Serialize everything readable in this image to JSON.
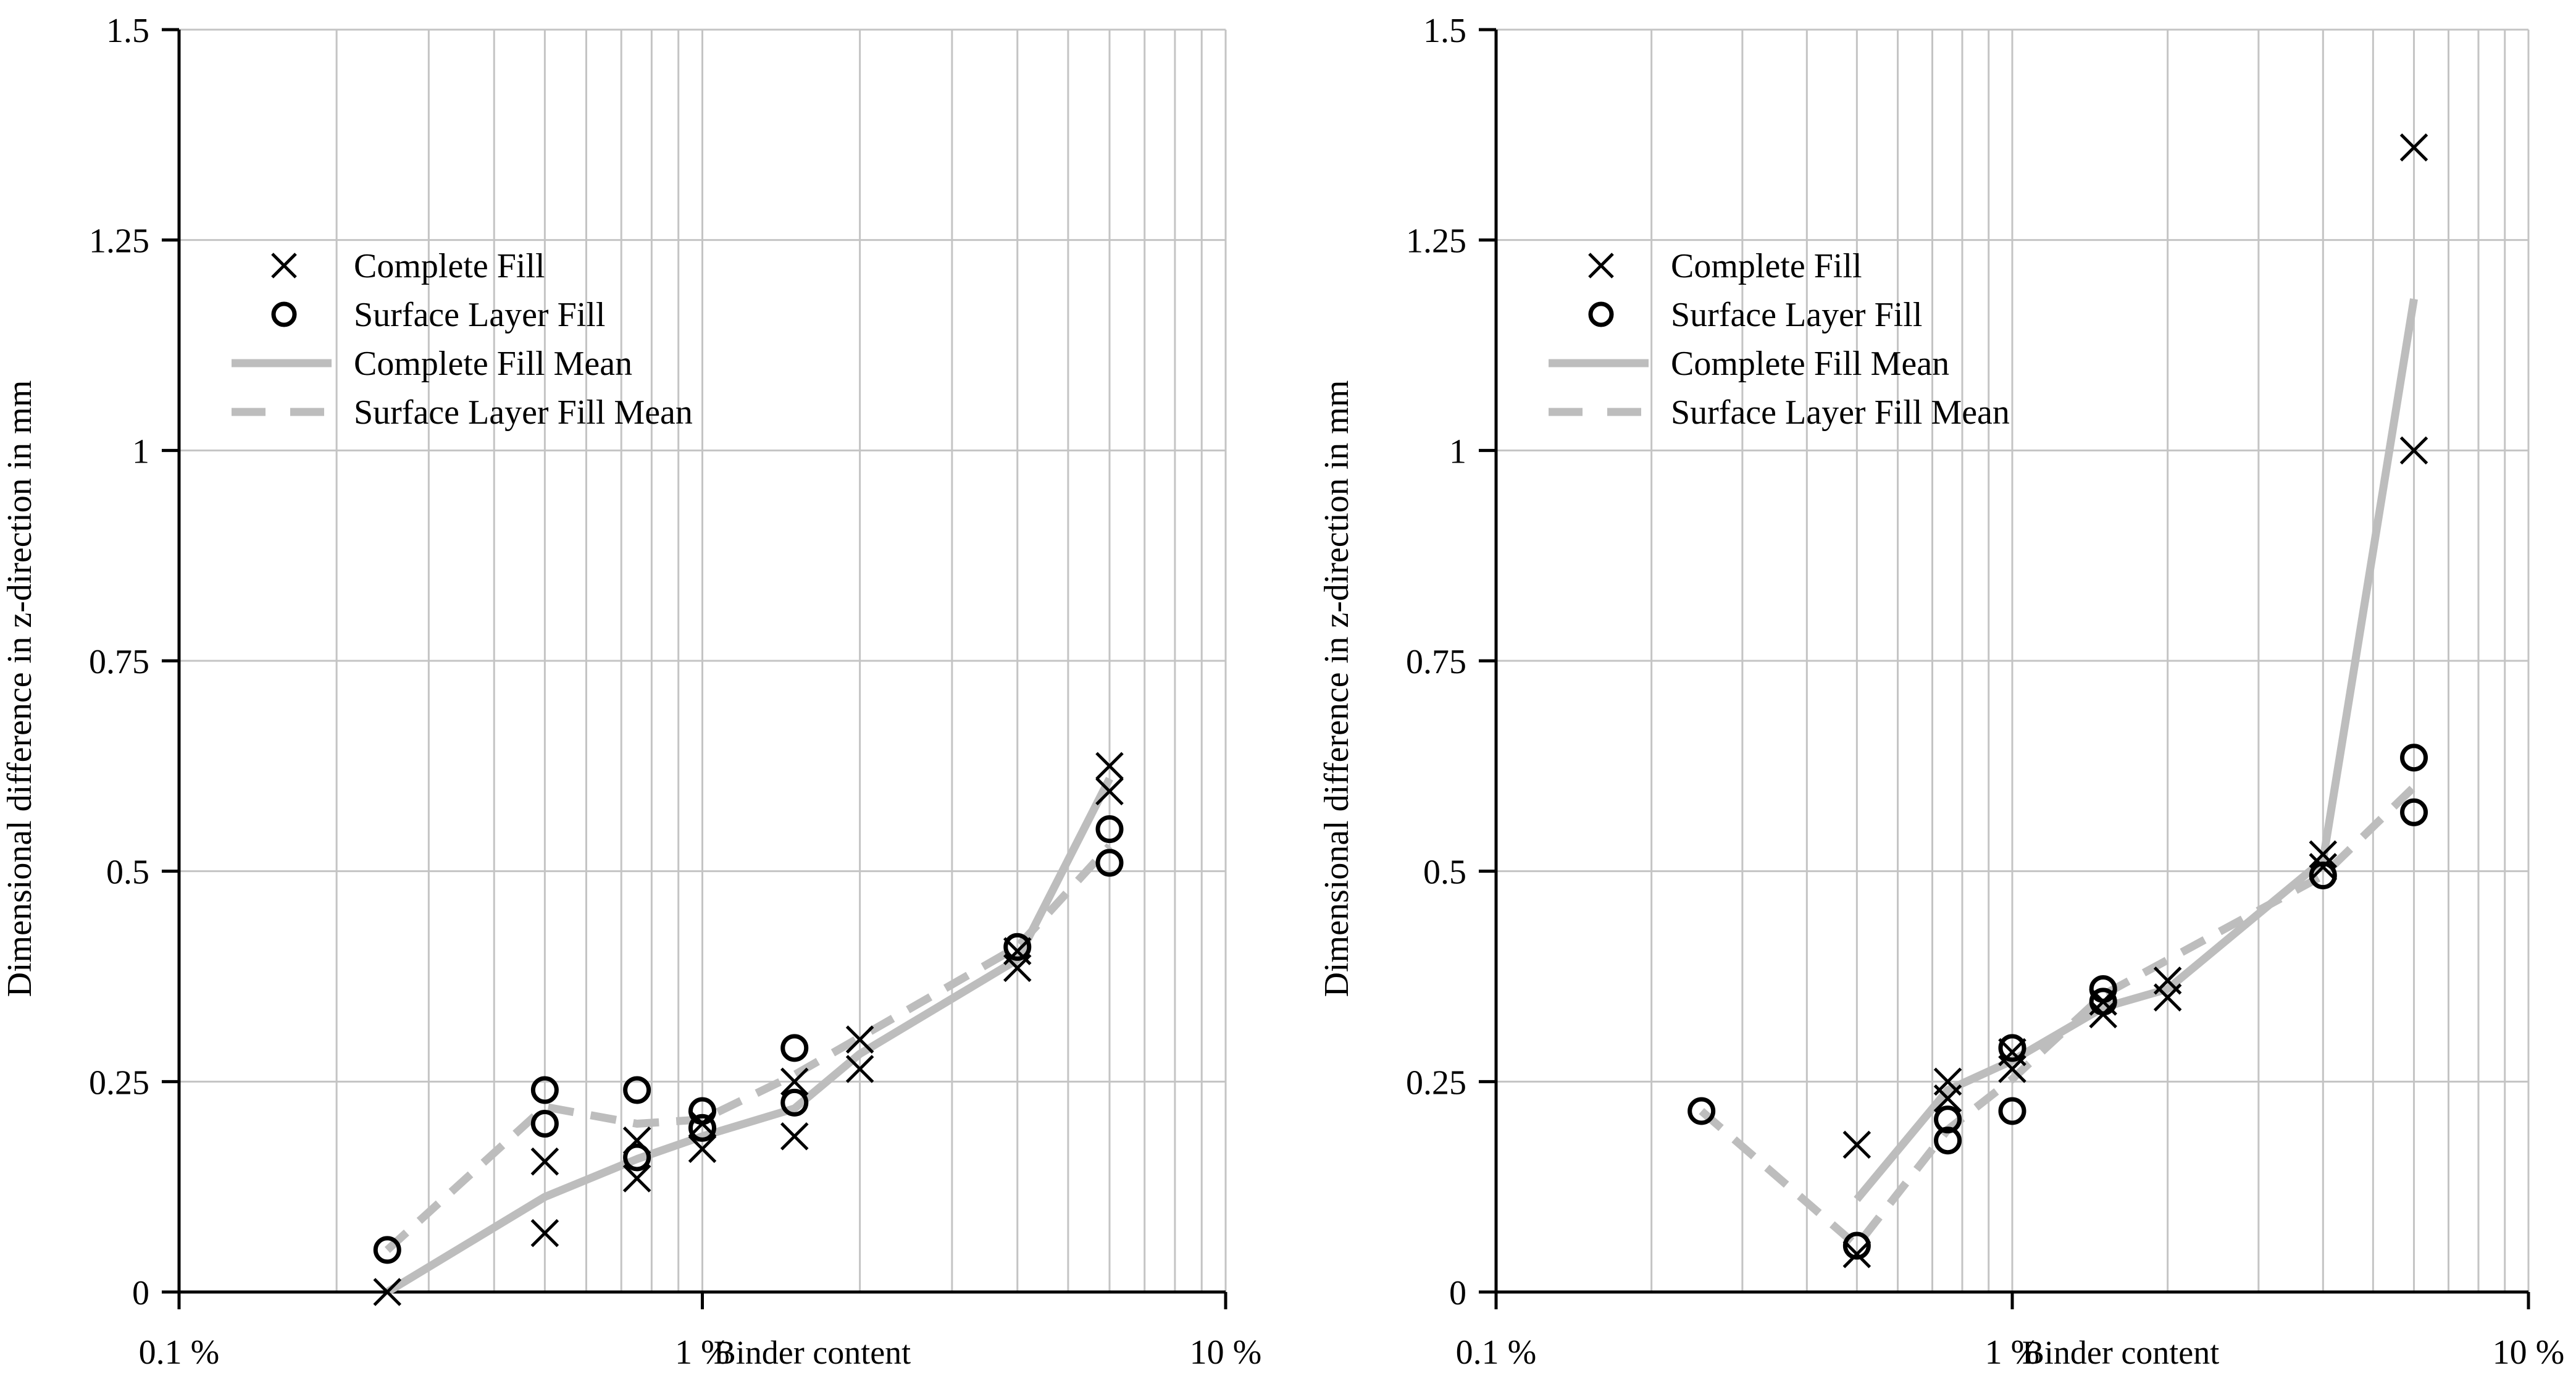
{
  "chart_data": [
    {
      "type": "scatter",
      "scale_x": "log",
      "xlim": [
        0.1,
        10
      ],
      "ylim": [
        0,
        1.5
      ],
      "x_ticks": [
        "0.1 %",
        "1 %",
        "10 %"
      ],
      "y_ticks": [
        "0",
        "0.25",
        "0.5",
        "0.75",
        "1",
        "1.25",
        "1.5"
      ],
      "xlabel": "Binder content",
      "ylabel": "Dimensional difference in z-direction in mm",
      "legend_position": "upper-left",
      "series": [
        {
          "name": "Complete Fill",
          "marker": "x",
          "points": [
            [
              0.25,
              0.0
            ],
            [
              0.5,
              0.07
            ],
            [
              0.5,
              0.155
            ],
            [
              0.75,
              0.135
            ],
            [
              0.75,
              0.18
            ],
            [
              1.0,
              0.17
            ],
            [
              1.0,
              0.2
            ],
            [
              1.5,
              0.185
            ],
            [
              1.5,
              0.25
            ],
            [
              2.0,
              0.265
            ],
            [
              2.0,
              0.3
            ],
            [
              4.0,
              0.385
            ],
            [
              4.0,
              0.405
            ],
            [
              6.0,
              0.595
            ],
            [
              6.0,
              0.625
            ]
          ]
        },
        {
          "name": "Surface Layer Fill",
          "marker": "o",
          "points": [
            [
              0.25,
              0.05
            ],
            [
              0.5,
              0.2
            ],
            [
              0.5,
              0.24
            ],
            [
              0.75,
              0.16
            ],
            [
              0.75,
              0.24
            ],
            [
              1.0,
              0.195
            ],
            [
              1.0,
              0.215
            ],
            [
              1.5,
              0.225
            ],
            [
              1.5,
              0.29
            ],
            [
              4.0,
              0.41
            ],
            [
              6.0,
              0.51
            ],
            [
              6.0,
              0.55
            ]
          ]
        },
        {
          "name": "Complete Fill Mean",
          "line": "solid",
          "color": "#bdbdbd",
          "points": [
            [
              0.25,
              0.0
            ],
            [
              0.5,
              0.113
            ],
            [
              0.75,
              0.158
            ],
            [
              1.0,
              0.185
            ],
            [
              1.5,
              0.218
            ],
            [
              2.0,
              0.283
            ],
            [
              4.0,
              0.395
            ],
            [
              6.0,
              0.61
            ]
          ]
        },
        {
          "name": "Surface Layer Fill Mean",
          "line": "dashed",
          "color": "#bdbdbd",
          "points": [
            [
              0.25,
              0.05
            ],
            [
              0.5,
              0.22
            ],
            [
              0.75,
              0.2
            ],
            [
              1.0,
              0.205
            ],
            [
              1.5,
              0.258
            ],
            [
              4.0,
              0.41
            ],
            [
              6.0,
              0.53
            ]
          ]
        }
      ]
    },
    {
      "type": "scatter",
      "scale_x": "log",
      "xlim": [
        0.1,
        10
      ],
      "ylim": [
        0,
        1.5
      ],
      "x_ticks": [
        "0.1 %",
        "1 %",
        "10 %"
      ],
      "y_ticks": [
        "0",
        "0.25",
        "0.5",
        "0.75",
        "1",
        "1.25",
        "1.5"
      ],
      "xlabel": "Binder content",
      "ylabel": "Dimensional difference in z-direction in mm",
      "legend_position": "upper-left",
      "series": [
        {
          "name": "Complete Fill",
          "marker": "x",
          "points": [
            [
              0.5,
              0.045
            ],
            [
              0.5,
              0.175
            ],
            [
              0.75,
              0.23
            ],
            [
              0.75,
              0.25
            ],
            [
              1.0,
              0.265
            ],
            [
              1.0,
              0.285
            ],
            [
              1.5,
              0.33
            ],
            [
              1.5,
              0.345
            ],
            [
              2.0,
              0.35
            ],
            [
              2.0,
              0.37
            ],
            [
              4.0,
              0.505
            ],
            [
              4.0,
              0.52
            ],
            [
              6.0,
              1.0
            ],
            [
              6.0,
              1.36
            ]
          ]
        },
        {
          "name": "Surface Layer Fill",
          "marker": "o",
          "points": [
            [
              0.25,
              0.215
            ],
            [
              0.5,
              0.055
            ],
            [
              0.75,
              0.18
            ],
            [
              0.75,
              0.205
            ],
            [
              1.0,
              0.215
            ],
            [
              1.0,
              0.29
            ],
            [
              1.5,
              0.345
            ],
            [
              1.5,
              0.36
            ],
            [
              4.0,
              0.495
            ],
            [
              6.0,
              0.57
            ],
            [
              6.0,
              0.635
            ]
          ]
        },
        {
          "name": "Complete Fill Mean",
          "line": "solid",
          "color": "#bdbdbd",
          "points": [
            [
              0.5,
              0.11
            ],
            [
              0.75,
              0.24
            ],
            [
              1.0,
              0.275
            ],
            [
              1.5,
              0.338
            ],
            [
              2.0,
              0.36
            ],
            [
              4.0,
              0.513
            ],
            [
              6.0,
              1.18
            ]
          ]
        },
        {
          "name": "Surface Layer Fill Mean",
          "line": "dashed",
          "color": "#bdbdbd",
          "points": [
            [
              0.25,
              0.215
            ],
            [
              0.5,
              0.055
            ],
            [
              0.75,
              0.193
            ],
            [
              1.0,
              0.253
            ],
            [
              1.5,
              0.353
            ],
            [
              4.0,
              0.495
            ],
            [
              6.0,
              0.6
            ]
          ]
        }
      ]
    }
  ]
}
